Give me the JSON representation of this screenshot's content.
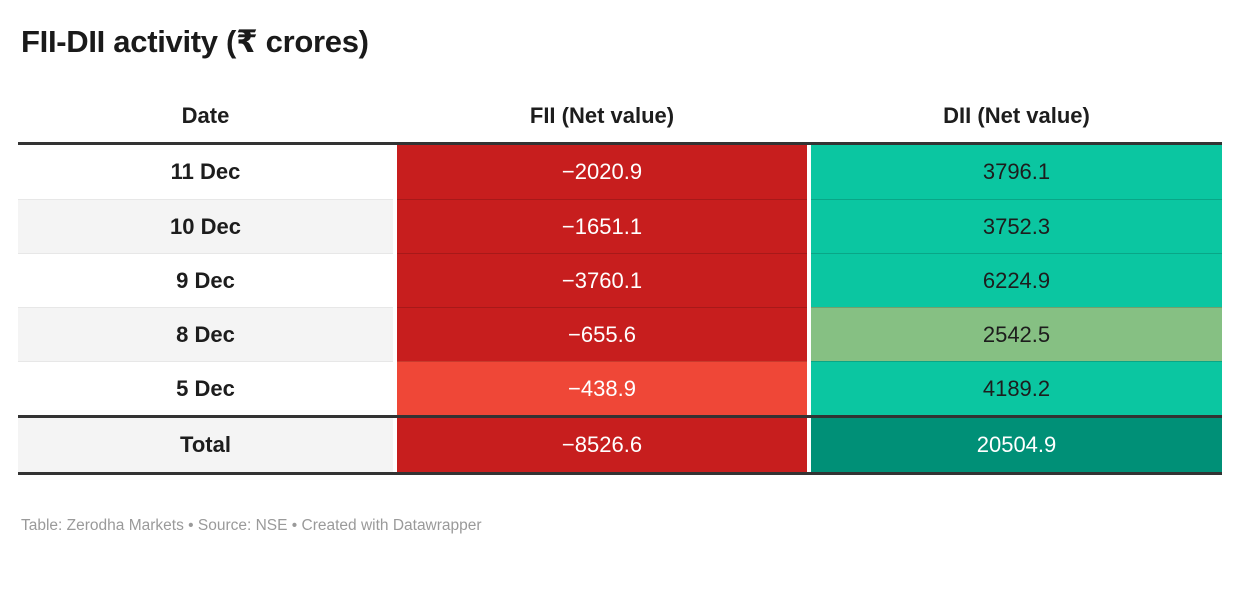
{
  "title": "FII-DII activity (₹ crores)",
  "table": {
    "columns": {
      "date": "Date",
      "fii": "FII (Net value)",
      "dii": "DII (Net value)"
    },
    "rows": [
      {
        "date": "11 Dec",
        "fii": "−2020.9",
        "dii": "3796.1"
      },
      {
        "date": "10 Dec",
        "fii": "−1651.1",
        "dii": "3752.3"
      },
      {
        "date": "9 Dec",
        "fii": "−3760.1",
        "dii": "6224.9"
      },
      {
        "date": "8 Dec",
        "fii": "−655.6",
        "dii": "2542.5"
      },
      {
        "date": "5 Dec",
        "fii": "−438.9",
        "dii": "4189.2"
      }
    ],
    "total": {
      "label": "Total",
      "fii": "−8526.6",
      "dii": "20504.9"
    }
  },
  "footer": "Table: Zerodha Markets • Source: NSE • Created with Datawrapper",
  "colors": {
    "cells": {
      "red-strong": {
        "bg": "#c71e1e",
        "text": "#ffffff"
      },
      "red-light": {
        "bg": "#ef4737",
        "text": "#ffffff"
      },
      "teal": {
        "bg": "#0bc6a1",
        "text": "#1d1d1d"
      },
      "sage": {
        "bg": "#86c083",
        "text": "#1d1d1d"
      },
      "teal-dark": {
        "bg": "#009077",
        "text": "#ffffff"
      },
      "row-white": {
        "bg": "#ffffff",
        "text": "#1d1d1d"
      },
      "row-gray": {
        "bg": "#f4f4f4",
        "text": "#1d1d1d"
      }
    },
    "rule_dark": "#333333",
    "title_text": "#1a1a1a",
    "footer_text": "#9a9a9a"
  },
  "chart_data": {
    "type": "table",
    "title": "FII-DII activity (₹ crores)",
    "columns": [
      "Date",
      "FII (Net value)",
      "DII (Net value)"
    ],
    "rows": [
      [
        "11 Dec",
        -2020.9,
        3796.1
      ],
      [
        "10 Dec",
        -1651.1,
        3752.3
      ],
      [
        "9 Dec",
        -3760.1,
        6224.9
      ],
      [
        "8 Dec",
        -655.6,
        2542.5
      ],
      [
        "5 Dec",
        -438.9,
        4189.2
      ],
      [
        "Total",
        -8526.6,
        20504.9
      ]
    ],
    "notes": "Cell shading encodes value: negative FII values red (lighter red for smallest magnitude −438.9), positive DII values teal/green (sage for 2542.5, dark teal for total 20504.9). Source line: Table: Zerodha Markets • Source: NSE • Created with Datawrapper."
  }
}
